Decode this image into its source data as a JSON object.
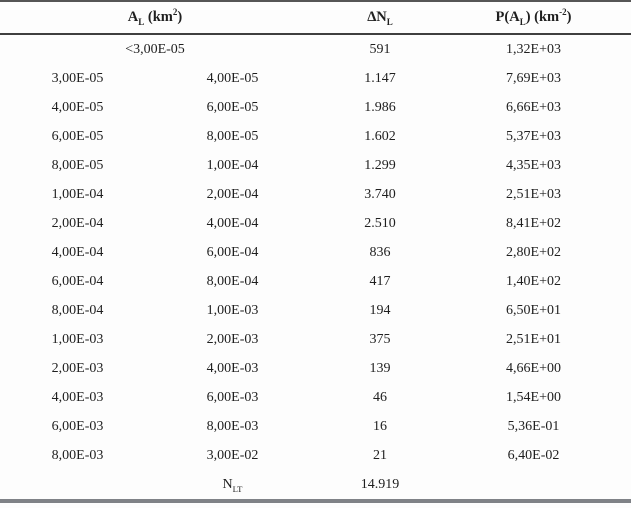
{
  "table": {
    "header": {
      "area": {
        "main": "A",
        "sub": "L",
        "unit_open": " (km",
        "unit_sup": "2",
        "unit_close": ")"
      },
      "delta_n": {
        "main": "ΔN",
        "sub": "L"
      },
      "p": {
        "main": "P(A",
        "sub": "L",
        "mid": ") (km",
        "sup": "-2",
        "close": ")"
      }
    },
    "first_row": {
      "range": "<3,00E-05",
      "dn": "591",
      "p": "1,32E+03"
    },
    "rows": [
      [
        "3,00E-05",
        "4,00E-05",
        "1.147",
        "7,69E+03"
      ],
      [
        "4,00E-05",
        "6,00E-05",
        "1.986",
        "6,66E+03"
      ],
      [
        "6,00E-05",
        "8,00E-05",
        "1.602",
        "5,37E+03"
      ],
      [
        "8,00E-05",
        "1,00E-04",
        "1.299",
        "4,35E+03"
      ],
      [
        "1,00E-04",
        "2,00E-04",
        "3.740",
        "2,51E+03"
      ],
      [
        "2,00E-04",
        "4,00E-04",
        "2.510",
        "8,41E+02"
      ],
      [
        "4,00E-04",
        "6,00E-04",
        "836",
        "2,80E+02"
      ],
      [
        "6,00E-04",
        "8,00E-04",
        "417",
        "1,40E+02"
      ],
      [
        "8,00E-04",
        "1,00E-03",
        "194",
        "6,50E+01"
      ],
      [
        "1,00E-03",
        "2,00E-03",
        "375",
        "2,51E+01"
      ],
      [
        "2,00E-03",
        "4,00E-03",
        "139",
        "4,66E+00"
      ],
      [
        "4,00E-03",
        "6,00E-03",
        "46",
        "1,54E+00"
      ],
      [
        "6,00E-03",
        "8,00E-03",
        "16",
        "5,36E-01"
      ],
      [
        "8,00E-03",
        "3,00E-02",
        "21",
        "6,40E-02"
      ]
    ],
    "total_row": {
      "label_main": "N",
      "label_sub": "LT",
      "value": "14.919"
    }
  },
  "colors": {
    "text": "#1f1f1f",
    "top_rule": "#565656",
    "header_rule": "#3f3f3f",
    "bottom_rule": "#7f8287",
    "background": "#fdfdfd"
  }
}
